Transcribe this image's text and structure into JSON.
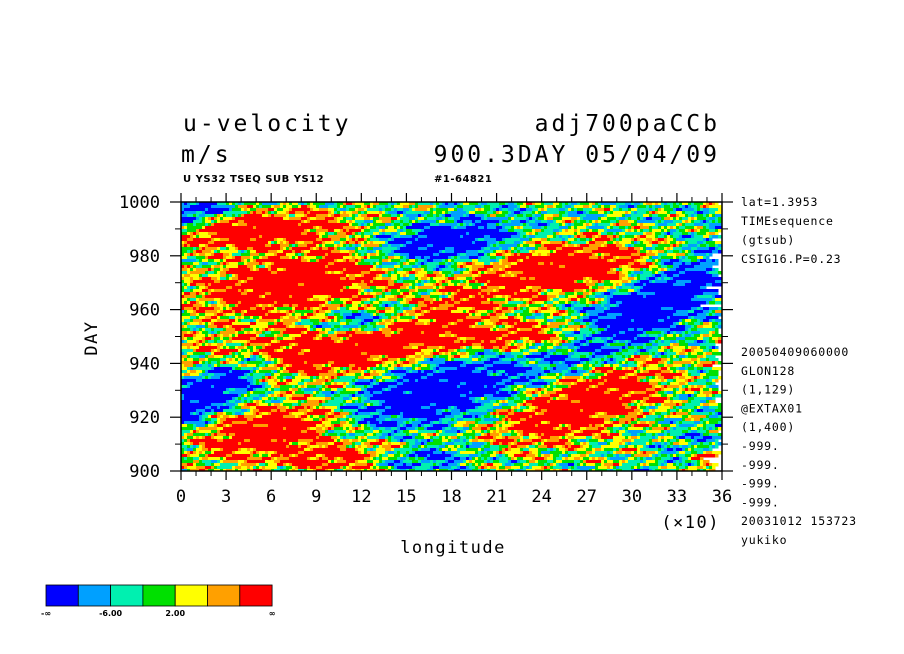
{
  "header": {
    "title_left": "u-velocity",
    "title_right": "adj700paCCb",
    "units": "m/s",
    "time_info": "900.3DAY 05/04/09",
    "subtitle_left": "U YS32 TSEQ SUB YS12",
    "subtitle_right": "#1-64821"
  },
  "side_info": {
    "top": [
      "lat=1.3953",
      "TIMEsequence",
      "(gtsub)",
      "CSIG16.P=0.23"
    ],
    "bottom": [
      "20050409060000",
      "GLON128",
      "(1,129)",
      "@EXTAX01",
      "(1,400)",
      "-999.",
      "-999.",
      "-999.",
      "-999.",
      "20031012 153723",
      "yukiko"
    ]
  },
  "chart_data": {
    "type": "heatmap",
    "title": "u-velocity",
    "xlabel": "longitude",
    "ylabel": "DAY",
    "x_multiplier_label": "(×10)",
    "xlim": [
      0,
      36
    ],
    "ylim": [
      900,
      1000
    ],
    "x_ticks": [
      "0",
      "3",
      "6",
      "9",
      "12",
      "15",
      "18",
      "21",
      "24",
      "27",
      "30",
      "33",
      "36"
    ],
    "y_ticks": [
      "900",
      "920",
      "940",
      "960",
      "980",
      "1000"
    ],
    "colorbar": {
      "colors": [
        "#0000ff",
        "#00a0ff",
        "#00f0b0",
        "#00e000",
        "#ffff00",
        "#ffa000",
        "#ff0000"
      ],
      "labels": [
        "-∞",
        "-6.00",
        "2.00",
        "∞"
      ]
    }
  }
}
